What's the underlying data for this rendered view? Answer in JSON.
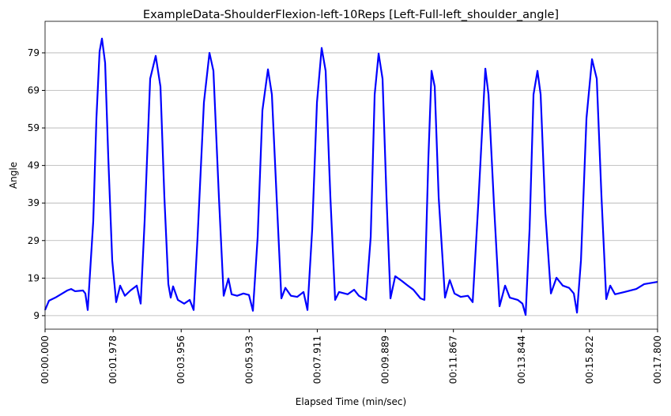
{
  "chart_data": {
    "type": "line",
    "title": "ExampleData-ShoulderFlexion-left-10Reps [Left-Full-left_shoulder_angle]",
    "x_label": "Elapsed Time (min/sec)",
    "y_label": "Angle",
    "color": "#0000ff",
    "grid": true,
    "xlim": [
      0,
      17.8
    ],
    "ylim": [
      5.4,
      87.4
    ],
    "xticks": [
      {
        "value": 0,
        "label": "00:00.000"
      },
      {
        "value": 1.978,
        "label": "00:01.978"
      },
      {
        "value": 3.956,
        "label": "00:03.956"
      },
      {
        "value": 5.933,
        "label": "00:05.933"
      },
      {
        "value": 7.911,
        "label": "00:07.911"
      },
      {
        "value": 9.889,
        "label": "00:09.889"
      },
      {
        "value": 11.867,
        "label": "00:11.867"
      },
      {
        "value": 13.844,
        "label": "00:13.844"
      },
      {
        "value": 15.822,
        "label": "00:15.822"
      },
      {
        "value": 17.8,
        "label": "00:17.800"
      }
    ],
    "yticks": [
      9,
      19,
      29,
      39,
      49,
      59,
      69,
      79
    ],
    "x": [
      0,
      0.115,
      0.299,
      0.643,
      0.758,
      0.873,
      1.103,
      1.171,
      1.24,
      1.401,
      1.493,
      1.585,
      1.654,
      1.746,
      1.838,
      1.952,
      2.067,
      2.182,
      2.32,
      2.481,
      2.665,
      2.779,
      2.894,
      3.055,
      3.216,
      3.354,
      3.468,
      3.583,
      3.652,
      3.721,
      3.859,
      4.043,
      4.204,
      4.318,
      4.433,
      4.617,
      4.778,
      4.893,
      5.053,
      5.191,
      5.329,
      5.421,
      5.582,
      5.765,
      5.926,
      6.041,
      6.179,
      6.317,
      6.478,
      6.592,
      6.73,
      6.868,
      6.983,
      7.144,
      7.327,
      7.511,
      7.626,
      7.764,
      7.902,
      8.039,
      8.154,
      8.292,
      8.43,
      8.545,
      8.797,
      8.981,
      9.119,
      9.326,
      9.464,
      9.579,
      9.694,
      9.808,
      9.923,
      10.038,
      10.176,
      10.36,
      10.543,
      10.704,
      10.911,
      11.025,
      11.14,
      11.232,
      11.324,
      11.439,
      11.623,
      11.761,
      11.898,
      12.082,
      12.289,
      12.427,
      12.588,
      12.795,
      12.887,
      13.047,
      13.208,
      13.369,
      13.506,
      13.736,
      13.874,
      13.966,
      14.081,
      14.195,
      14.31,
      14.402,
      14.54,
      14.701,
      14.862,
      15.045,
      15.229,
      15.367,
      15.459,
      15.574,
      15.734,
      15.895,
      16.033,
      16.171,
      16.309,
      16.424,
      16.562,
      16.837,
      17.182,
      17.411,
      17.8
    ],
    "values": [
      10.5,
      13.0,
      13.8,
      15.7,
      16.1,
      15.5,
      15.7,
      14.9,
      10.5,
      34.2,
      61.6,
      79.4,
      82.8,
      76.3,
      51.0,
      23.7,
      12.6,
      17.0,
      14.3,
      15.7,
      17.0,
      12.2,
      34.2,
      72.1,
      78.2,
      70.0,
      40.5,
      17.4,
      13.8,
      16.8,
      13.2,
      12.2,
      13.2,
      10.5,
      30.0,
      65.8,
      79.0,
      74.2,
      40.5,
      14.3,
      18.9,
      14.7,
      14.3,
      14.9,
      14.5,
      10.3,
      30.0,
      63.7,
      74.6,
      67.9,
      40.5,
      13.6,
      16.4,
      14.3,
      14.0,
      15.3,
      10.5,
      32.1,
      65.8,
      80.3,
      74.2,
      40.5,
      13.2,
      15.3,
      14.7,
      15.9,
      14.3,
      13.2,
      30.0,
      67.9,
      78.8,
      72.1,
      40.5,
      13.6,
      19.5,
      18.3,
      17.0,
      15.9,
      13.6,
      13.2,
      51.0,
      74.2,
      70.0,
      40.5,
      13.8,
      18.5,
      14.9,
      14.0,
      14.3,
      12.6,
      38.4,
      74.8,
      67.9,
      38.4,
      11.5,
      17.0,
      13.8,
      13.2,
      12.2,
      9.2,
      32.1,
      67.9,
      74.2,
      67.9,
      36.3,
      14.9,
      19.1,
      17.0,
      16.4,
      14.9,
      9.8,
      23.7,
      61.6,
      77.3,
      72.1,
      40.5,
      13.4,
      17.0,
      14.7,
      15.3,
      16.1,
      17.4,
      18.0
    ]
  }
}
